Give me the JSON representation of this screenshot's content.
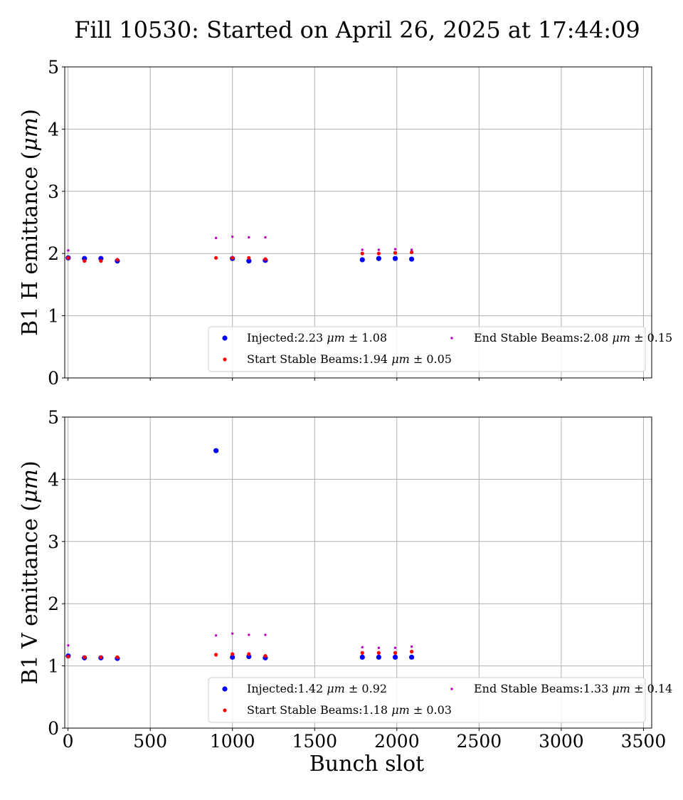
{
  "figure": {
    "title": "Fill 10530: Started on April 26, 2025 at 17:44:09"
  },
  "chart_data": [
    {
      "type": "scatter",
      "ylabel": "B1 H emittance (μm)",
      "xlabel": "",
      "xlim": [
        -20,
        3550
      ],
      "ylim": [
        0,
        5
      ],
      "xticks": [
        0,
        500,
        1000,
        1500,
        2000,
        2500,
        3000,
        3500
      ],
      "yticks": [
        0,
        1,
        2,
        3,
        4,
        5
      ],
      "show_xtick_labels": false,
      "grid": true,
      "legend_position": "lower-right",
      "series": [
        {
          "name": "Injected",
          "legend": "Injected:2.23 μm ± 1.08",
          "color": "#0000ff",
          "marker": "large-dot",
          "x": [
            1,
            100,
            200,
            300,
            1000,
            1100,
            1200,
            1790,
            1890,
            1990,
            2090
          ],
          "y": [
            1.93,
            1.92,
            1.92,
            1.88,
            1.92,
            1.88,
            1.89,
            1.9,
            1.92,
            1.92,
            1.91
          ]
        },
        {
          "name": "Start Stable Beams",
          "legend": "Start Stable Beams:1.94 μm ± 0.05",
          "color": "#ff0000",
          "marker": "medium-dot",
          "x": [
            1,
            100,
            200,
            300,
            900,
            1000,
            1100,
            1200,
            1790,
            1890,
            1990,
            2090
          ],
          "y": [
            1.93,
            1.88,
            1.88,
            1.9,
            1.93,
            1.93,
            1.93,
            1.91,
            2.0,
            2.0,
            2.01,
            2.02
          ]
        },
        {
          "name": "End Stable Beams",
          "legend": "End Stable Beams:2.08 μm ± 0.15",
          "color": "#bf00bf",
          "marker": "small-dot",
          "x": [
            1,
            900,
            1000,
            1100,
            1200,
            1790,
            1890,
            1990,
            2090
          ],
          "y": [
            2.05,
            2.25,
            2.27,
            2.26,
            2.26,
            2.06,
            2.06,
            2.07,
            2.06
          ]
        }
      ]
    },
    {
      "type": "scatter",
      "ylabel": "B1 V emittance (μm)",
      "xlabel": "Bunch slot",
      "xlim": [
        -20,
        3550
      ],
      "ylim": [
        0,
        5
      ],
      "xticks": [
        0,
        500,
        1000,
        1500,
        2000,
        2500,
        3000,
        3500
      ],
      "yticks": [
        0,
        1,
        2,
        3,
        4,
        5
      ],
      "show_xtick_labels": true,
      "grid": true,
      "legend_position": "lower-right",
      "series": [
        {
          "name": "Injected",
          "legend": "Injected:1.42 μm ± 0.92",
          "color": "#0000ff",
          "marker": "large-dot",
          "x": [
            1,
            100,
            200,
            300,
            900,
            1000,
            1100,
            1200,
            1790,
            1890,
            1990,
            2090
          ],
          "y": [
            1.16,
            1.13,
            1.13,
            1.12,
            4.46,
            1.14,
            1.15,
            1.13,
            1.14,
            1.14,
            1.14,
            1.14
          ]
        },
        {
          "name": "Start Stable Beams",
          "legend": "Start Stable Beams:1.18 μm ± 0.03",
          "color": "#ff0000",
          "marker": "medium-dot",
          "x": [
            1,
            100,
            200,
            300,
            900,
            1000,
            1100,
            1200,
            1790,
            1890,
            1990,
            2090
          ],
          "y": [
            1.15,
            1.14,
            1.14,
            1.14,
            1.18,
            1.19,
            1.19,
            1.16,
            1.21,
            1.21,
            1.21,
            1.23
          ]
        },
        {
          "name": "End Stable Beams",
          "legend": "End Stable Beams:1.33 μm ± 0.14",
          "color": "#bf00bf",
          "marker": "small-dot",
          "x": [
            1,
            900,
            1000,
            1100,
            1200,
            1790,
            1890,
            1990,
            2090
          ],
          "y": [
            1.33,
            1.49,
            1.52,
            1.5,
            1.5,
            1.3,
            1.29,
            1.29,
            1.31
          ]
        }
      ]
    }
  ]
}
